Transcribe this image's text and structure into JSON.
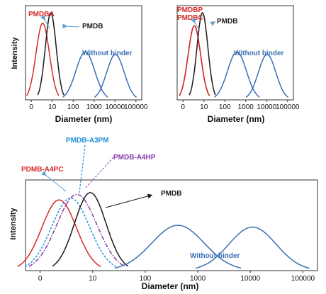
{
  "colors": {
    "pmdb": "#1a1a1a",
    "pmdba": "#d42a2a",
    "pmdbp": "#d42a2a",
    "pmdbc": "#d42a2a",
    "pdmb_a4pc": "#d42a2a",
    "pmdb_a3pm": "#1f8fd8",
    "pmdb_a4hp": "#8a3aa8",
    "without_binder": "#3a6fb5",
    "arrow": "#5aa0d0"
  },
  "chart_data": [
    {
      "type": "line",
      "panel": "top-left",
      "xlabel": "Diameter (nm)",
      "ylabel": "Intensity",
      "xscale": "log",
      "xticks": [
        "0",
        "10",
        "100",
        "1000",
        "10000",
        "100000"
      ],
      "series": [
        {
          "name": "PMDBA",
          "color": "#d42a2a",
          "dash": "solid",
          "peaks": [
            {
              "center_nm": 3.5,
              "height": 0.88,
              "width_decades": 0.32
            }
          ]
        },
        {
          "name": "PMDB",
          "color": "#1a1a1a",
          "dash": "solid",
          "peaks": [
            {
              "center_nm": 8.5,
              "height": 1.0,
              "width_decades": 0.26
            }
          ]
        },
        {
          "name": "Without binder",
          "color": "#3a6fb5",
          "dash": "solid",
          "peaks": [
            {
              "center_nm": 380,
              "height": 0.55,
              "width_decades": 0.45
            },
            {
              "center_nm": 10500,
              "height": 0.52,
              "width_decades": 0.42
            }
          ]
        }
      ]
    },
    {
      "type": "line",
      "panel": "top-right",
      "xlabel": "Diameter (nm)",
      "ylabel": "",
      "xscale": "log",
      "xticks": [
        "0",
        "10",
        "100",
        "1000",
        "10000",
        "100000"
      ],
      "series": [
        {
          "name": "PMDBP",
          "color": "#d42a2a",
          "dash": "solid",
          "peaks": [
            {
              "center_nm": 3.5,
              "height": 0.85,
              "width_decades": 0.3
            }
          ]
        },
        {
          "name": "PMDBC",
          "color": "#d42a2a",
          "dash": "solid",
          "peaks": [
            {
              "center_nm": 3.5,
              "height": 0.85,
              "width_decades": 0.3
            }
          ]
        },
        {
          "name": "PMDB",
          "color": "#1a1a1a",
          "dash": "solid",
          "peaks": [
            {
              "center_nm": 8.5,
              "height": 1.0,
              "width_decades": 0.26
            }
          ]
        },
        {
          "name": "Without binder",
          "color": "#3a6fb5",
          "dash": "solid",
          "peaks": [
            {
              "center_nm": 380,
              "height": 0.55,
              "width_decades": 0.45
            },
            {
              "center_nm": 10500,
              "height": 0.52,
              "width_decades": 0.42
            }
          ]
        }
      ]
    },
    {
      "type": "line",
      "panel": "bottom",
      "xlabel": "Diameter (nm)",
      "ylabel": "Intensity",
      "xscale": "log",
      "xticks": [
        "0",
        "10",
        "100",
        "1000",
        "10000",
        "100000"
      ],
      "series": [
        {
          "name": "PDMB-A4PC",
          "color": "#d42a2a",
          "dash": "solid",
          "peaks": [
            {
              "center_nm": 2.3,
              "height": 0.78,
              "width_decades": 0.33
            }
          ]
        },
        {
          "name": "PMDB-A3PM",
          "color": "#1f8fd8",
          "dash": "dashed",
          "peaks": [
            {
              "center_nm": 3.8,
              "height": 0.8,
              "width_decades": 0.36
            }
          ]
        },
        {
          "name": "PMDB-A4HP",
          "color": "#8a3aa8",
          "dash": "dashdot",
          "peaks": [
            {
              "center_nm": 5.0,
              "height": 0.84,
              "width_decades": 0.38
            }
          ]
        },
        {
          "name": "PMDB",
          "color": "#1a1a1a",
          "dash": "solid",
          "peaks": [
            {
              "center_nm": 9.0,
              "height": 0.86,
              "width_decades": 0.3
            }
          ]
        },
        {
          "name": "Without binder",
          "color": "#3a6fb5",
          "dash": "solid",
          "peaks": [
            {
              "center_nm": 420,
              "height": 0.5,
              "width_decades": 0.5
            },
            {
              "center_nm": 11000,
              "height": 0.48,
              "width_decades": 0.45
            }
          ]
        }
      ]
    }
  ]
}
